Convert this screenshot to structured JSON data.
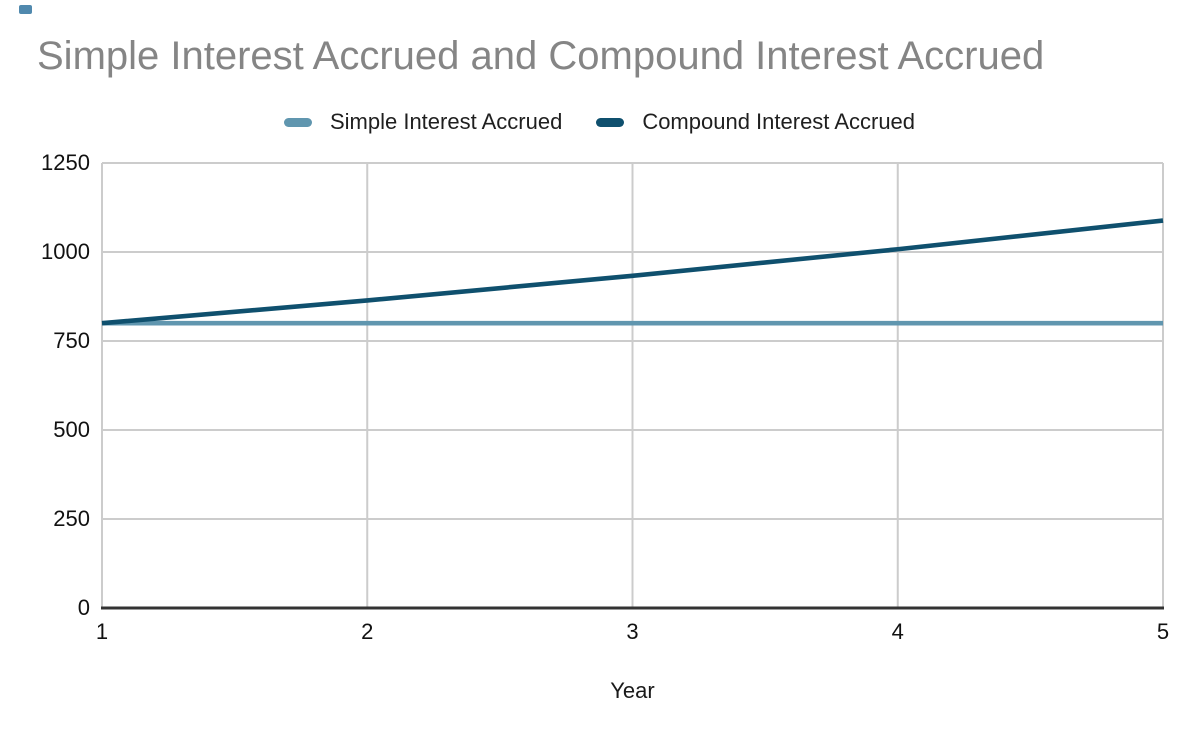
{
  "window": {
    "corner_marker_color": "#5089ae"
  },
  "chart_data": {
    "type": "line",
    "title": "Simple Interest Accrued and Compound Interest Accrued",
    "x": [
      1,
      2,
      3,
      4,
      5
    ],
    "series": [
      {
        "name": "Simple Interest Accrued",
        "color": "#6096af",
        "values": [
          800,
          800,
          800,
          800,
          800
        ]
      },
      {
        "name": "Compound Interest Accrued",
        "color": "#0f506e",
        "values": [
          800,
          864,
          933.12,
          1007.77,
          1088.39
        ]
      }
    ],
    "xlabel": "Year",
    "ylabel": "",
    "xlim": [
      1,
      5
    ],
    "ylim": [
      0,
      1250
    ],
    "xticks": [
      1,
      2,
      3,
      4,
      5
    ],
    "yticks": [
      0,
      250,
      500,
      750,
      1000,
      1250
    ],
    "grid": true,
    "legend_position": "top",
    "colors": {
      "gridline": "#cccccc",
      "axis_line": "#333333",
      "tick_label": "#111111",
      "title": "#858585",
      "axis_title": "#1a1a1a",
      "legend_text": "#1f1f1f"
    }
  }
}
